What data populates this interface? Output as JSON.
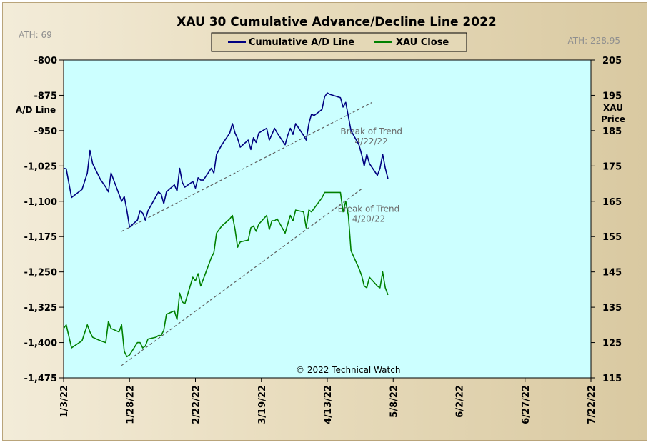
{
  "chart_data": {
    "type": "line",
    "title": "XAU 30 Cumulative Advance/Decline Line 2022",
    "ylabel_left": "A/D Line",
    "ylabel_right": [
      "XAU",
      "Price"
    ],
    "ath_left": "ATH: 69",
    "ath_right": "ATH: 228.95",
    "copyright": "© 2022 Technical Watch",
    "grid": false,
    "legend_placement": "top-center",
    "background_color": "#ccffff",
    "left_axis": {
      "ylim": [
        -1475,
        -800
      ],
      "ticks": [
        -800,
        -875,
        -950,
        -1025,
        -1100,
        -1175,
        -1250,
        -1325,
        -1400,
        -1475
      ],
      "tick_labels": [
        "-800",
        "-875",
        "-950",
        "-1,025",
        "-1,100",
        "-1,175",
        "-1,250",
        "-1,325",
        "-1,400",
        "-1,475"
      ]
    },
    "right_axis": {
      "ylim": [
        115,
        205
      ],
      "ticks": [
        205,
        195,
        185,
        175,
        165,
        155,
        145,
        135,
        125,
        115
      ],
      "tick_labels": [
        "205",
        "195",
        "185",
        "175",
        "165",
        "155",
        "145",
        "135",
        "125",
        "115"
      ]
    },
    "x_axis": {
      "start": "2022-01-03",
      "end": "2022-07-22",
      "ticks": [
        "2022-01-03",
        "2022-01-28",
        "2022-02-22",
        "2022-03-19",
        "2022-04-13",
        "2022-05-08",
        "2022-06-02",
        "2022-06-27",
        "2022-07-22"
      ],
      "tick_labels": [
        "1/3/22",
        "1/28/22",
        "2/22/22",
        "3/19/22",
        "4/13/22",
        "5/8/22",
        "6/2/22",
        "6/27/22",
        "7/22/22"
      ]
    },
    "series": [
      {
        "name": "Cumulative A/D Line",
        "axis": "left",
        "color": "#000080",
        "points": [
          [
            "2022-01-03",
            -1030
          ],
          [
            "2022-01-04",
            -1031
          ],
          [
            "2022-01-06",
            -1092
          ],
          [
            "2022-01-10",
            -1075
          ],
          [
            "2022-01-12",
            -1040
          ],
          [
            "2022-01-13",
            -992
          ],
          [
            "2022-01-14",
            -1020
          ],
          [
            "2022-01-17",
            -1054
          ],
          [
            "2022-01-19",
            -1070
          ],
          [
            "2022-01-20",
            -1080
          ],
          [
            "2022-01-21",
            -1040
          ],
          [
            "2022-01-24",
            -1085
          ],
          [
            "2022-01-25",
            -1100
          ],
          [
            "2022-01-26",
            -1090
          ],
          [
            "2022-01-27",
            -1120
          ],
          [
            "2022-01-28",
            -1155
          ],
          [
            "2022-01-31",
            -1140
          ],
          [
            "2022-02-01",
            -1120
          ],
          [
            "2022-02-02",
            -1125
          ],
          [
            "2022-02-03",
            -1140
          ],
          [
            "2022-02-04",
            -1120
          ],
          [
            "2022-02-07",
            -1090
          ],
          [
            "2022-02-08",
            -1080
          ],
          [
            "2022-02-09",
            -1085
          ],
          [
            "2022-02-10",
            -1105
          ],
          [
            "2022-02-11",
            -1080
          ],
          [
            "2022-02-14",
            -1065
          ],
          [
            "2022-02-15",
            -1078
          ],
          [
            "2022-02-16",
            -1030
          ],
          [
            "2022-02-17",
            -1060
          ],
          [
            "2022-02-18",
            -1070
          ],
          [
            "2022-02-21",
            -1058
          ],
          [
            "2022-02-22",
            -1072
          ],
          [
            "2022-02-23",
            -1050
          ],
          [
            "2022-02-24",
            -1055
          ],
          [
            "2022-02-25",
            -1055
          ],
          [
            "2022-02-28",
            -1030
          ],
          [
            "2022-03-01",
            -1040
          ],
          [
            "2022-03-02",
            -1000
          ],
          [
            "2022-03-03",
            -990
          ],
          [
            "2022-03-04",
            -980
          ],
          [
            "2022-03-07",
            -955
          ],
          [
            "2022-03-08",
            -935
          ],
          [
            "2022-03-09",
            -955
          ],
          [
            "2022-03-10",
            -967
          ],
          [
            "2022-03-11",
            -985
          ],
          [
            "2022-03-14",
            -970
          ],
          [
            "2022-03-15",
            -990
          ],
          [
            "2022-03-16",
            -965
          ],
          [
            "2022-03-17",
            -975
          ],
          [
            "2022-03-18",
            -955
          ],
          [
            "2022-03-21",
            -945
          ],
          [
            "2022-03-22",
            -970
          ],
          [
            "2022-03-23",
            -958
          ],
          [
            "2022-03-24",
            -945
          ],
          [
            "2022-03-25",
            -955
          ],
          [
            "2022-03-28",
            -980
          ],
          [
            "2022-03-29",
            -960
          ],
          [
            "2022-03-30",
            -945
          ],
          [
            "2022-03-31",
            -958
          ],
          [
            "2022-04-01",
            -935
          ],
          [
            "2022-04-04",
            -960
          ],
          [
            "2022-04-05",
            -970
          ],
          [
            "2022-04-06",
            -935
          ],
          [
            "2022-04-07",
            -915
          ],
          [
            "2022-04-08",
            -918
          ],
          [
            "2022-04-11",
            -905
          ],
          [
            "2022-04-12",
            -878
          ],
          [
            "2022-04-13",
            -870
          ],
          [
            "2022-04-14",
            -873
          ],
          [
            "2022-04-18",
            -880
          ],
          [
            "2022-04-19",
            -900
          ],
          [
            "2022-04-20",
            -890
          ],
          [
            "2022-04-21",
            -920
          ],
          [
            "2022-04-22",
            -950
          ],
          [
            "2022-04-25",
            -980
          ],
          [
            "2022-04-26",
            -1000
          ],
          [
            "2022-04-27",
            -1025
          ],
          [
            "2022-04-28",
            -1000
          ],
          [
            "2022-04-29",
            -1020
          ],
          [
            "2022-05-02",
            -1045
          ],
          [
            "2022-05-03",
            -1030
          ],
          [
            "2022-05-04",
            -1000
          ],
          [
            "2022-05-05",
            -1030
          ],
          [
            "2022-05-06",
            -1052
          ]
        ]
      },
      {
        "name": "XAU Close",
        "axis": "right",
        "color": "#008000",
        "points": [
          [
            "2022-01-03",
            129
          ],
          [
            "2022-01-04",
            130
          ],
          [
            "2022-01-06",
            123.5
          ],
          [
            "2022-01-10",
            125.5
          ],
          [
            "2022-01-12",
            130
          ],
          [
            "2022-01-13",
            128
          ],
          [
            "2022-01-14",
            126.5
          ],
          [
            "2022-01-17",
            125.5
          ],
          [
            "2022-01-19",
            125
          ],
          [
            "2022-01-20",
            131
          ],
          [
            "2022-01-21",
            129
          ],
          [
            "2022-01-24",
            128
          ],
          [
            "2022-01-25",
            130
          ],
          [
            "2022-01-26",
            122.5
          ],
          [
            "2022-01-27",
            121
          ],
          [
            "2022-01-28",
            121.5
          ],
          [
            "2022-01-31",
            125
          ],
          [
            "2022-02-01",
            125
          ],
          [
            "2022-02-02",
            123.5
          ],
          [
            "2022-02-03",
            124
          ],
          [
            "2022-02-04",
            126
          ],
          [
            "2022-02-07",
            126.5
          ],
          [
            "2022-02-08",
            127
          ],
          [
            "2022-02-09",
            127
          ],
          [
            "2022-02-10",
            128.5
          ],
          [
            "2022-02-11",
            133
          ],
          [
            "2022-02-14",
            134
          ],
          [
            "2022-02-15",
            131.5
          ],
          [
            "2022-02-16",
            139
          ],
          [
            "2022-02-17",
            136.5
          ],
          [
            "2022-02-18",
            136
          ],
          [
            "2022-02-21",
            143.5
          ],
          [
            "2022-02-22",
            142.5
          ],
          [
            "2022-02-23",
            144.5
          ],
          [
            "2022-02-24",
            141
          ],
          [
            "2022-02-25",
            143
          ],
          [
            "2022-02-28",
            149
          ],
          [
            "2022-03-01",
            150.5
          ],
          [
            "2022-03-02",
            156
          ],
          [
            "2022-03-03",
            157
          ],
          [
            "2022-03-04",
            158
          ],
          [
            "2022-03-07",
            160
          ],
          [
            "2022-03-08",
            161
          ],
          [
            "2022-03-09",
            157
          ],
          [
            "2022-03-10",
            152
          ],
          [
            "2022-03-11",
            153.5
          ],
          [
            "2022-03-14",
            154
          ],
          [
            "2022-03-15",
            157.5
          ],
          [
            "2022-03-16",
            158
          ],
          [
            "2022-03-17",
            156.5
          ],
          [
            "2022-03-18",
            158.5
          ],
          [
            "2022-03-21",
            161
          ],
          [
            "2022-03-22",
            157
          ],
          [
            "2022-03-23",
            159.5
          ],
          [
            "2022-03-24",
            159.5
          ],
          [
            "2022-03-25",
            160
          ],
          [
            "2022-03-28",
            156
          ],
          [
            "2022-03-29",
            158.5
          ],
          [
            "2022-03-30",
            161
          ],
          [
            "2022-03-31",
            159.5
          ],
          [
            "2022-04-01",
            162.5
          ],
          [
            "2022-04-04",
            162
          ],
          [
            "2022-04-05",
            157.5
          ],
          [
            "2022-04-06",
            162.5
          ],
          [
            "2022-04-07",
            162
          ],
          [
            "2022-04-08",
            163
          ],
          [
            "2022-04-11",
            166
          ],
          [
            "2022-04-12",
            167.5
          ],
          [
            "2022-04-13",
            167.5
          ],
          [
            "2022-04-14",
            167.5
          ],
          [
            "2022-04-18",
            167.5
          ],
          [
            "2022-04-19",
            162
          ],
          [
            "2022-04-20",
            165
          ],
          [
            "2022-04-21",
            161
          ],
          [
            "2022-04-22",
            151
          ],
          [
            "2022-04-25",
            146
          ],
          [
            "2022-04-26",
            144
          ],
          [
            "2022-04-27",
            141
          ],
          [
            "2022-04-28",
            140.5
          ],
          [
            "2022-04-29",
            143.5
          ],
          [
            "2022-05-02",
            141
          ],
          [
            "2022-05-03",
            140.5
          ],
          [
            "2022-05-04",
            145
          ],
          [
            "2022-05-05",
            140.5
          ],
          [
            "2022-05-06",
            138.5
          ]
        ]
      }
    ],
    "trendlines": [
      {
        "axis": "left",
        "from": [
          "2022-01-25",
          -1164
        ],
        "to": [
          "2022-04-30",
          -890
        ],
        "label_lines": [
          "Break of Trend",
          "4/22/22"
        ],
        "label_at": [
          "2022-04-27",
          -958
        ]
      },
      {
        "axis": "right",
        "from": [
          "2022-01-25",
          118.5
        ],
        "to": [
          "2022-04-26",
          168.5
        ],
        "label_lines": [
          "Break of Trend",
          "4/20/22"
        ],
        "label_at": [
          "2022-04-26",
          162
        ]
      }
    ]
  }
}
